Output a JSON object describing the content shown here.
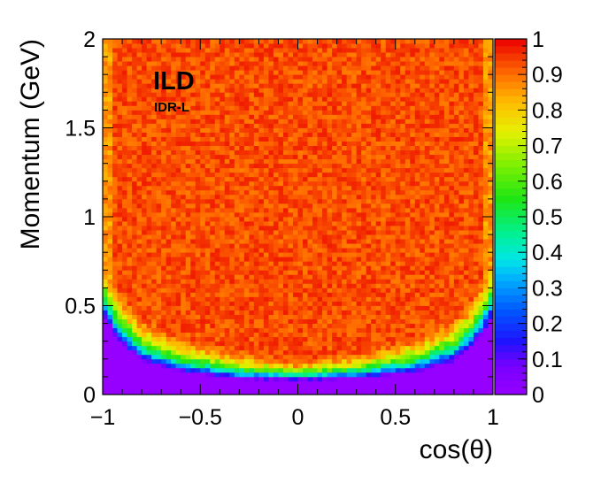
{
  "chart_data": {
    "type": "heatmap",
    "title": "",
    "xlabel": "cos(θ)",
    "ylabel": "Momentum (GeV)",
    "xlim": [
      -1,
      1
    ],
    "ylim": [
      0,
      2
    ],
    "x_ticks": [
      {
        "value": -1,
        "label": "−1"
      },
      {
        "value": -0.5,
        "label": "−0.5"
      },
      {
        "value": 0,
        "label": "0"
      },
      {
        "value": 0.5,
        "label": "0.5"
      },
      {
        "value": 1,
        "label": "1"
      }
    ],
    "y_ticks": [
      {
        "value": 0,
        "label": "0"
      },
      {
        "value": 0.5,
        "label": "0.5"
      },
      {
        "value": 1,
        "label": "1"
      },
      {
        "value": 1.5,
        "label": "1.5"
      },
      {
        "value": 2,
        "label": "2"
      }
    ],
    "z_range": [
      0,
      1
    ],
    "z_ticks": [
      {
        "value": 0,
        "label": "0"
      },
      {
        "value": 0.1,
        "label": "0.1"
      },
      {
        "value": 0.2,
        "label": "0.2"
      },
      {
        "value": 0.3,
        "label": "0.3"
      },
      {
        "value": 0.4,
        "label": "0.4"
      },
      {
        "value": 0.5,
        "label": "0.5"
      },
      {
        "value": 0.6,
        "label": "0.6"
      },
      {
        "value": 0.7,
        "label": "0.7"
      },
      {
        "value": 0.8,
        "label": "0.8"
      },
      {
        "value": 0.9,
        "label": "0.9"
      },
      {
        "value": 1,
        "label": "1"
      }
    ],
    "bins": {
      "x": 80,
      "y": 80
    },
    "colormap": "ROOT rainbow (violet to red)",
    "annotations": [
      {
        "text": "ILD",
        "style": "bold"
      },
      {
        "text": "IDR-L",
        "style": "bold"
      }
    ],
    "grid": false,
    "legend": "colorbar-right",
    "efficiency_profile": {
      "description": "Efficiency ~0 below threshold momentum, rises through 0.5-0.8 in a band, plateaus ~0.93 above",
      "threshold_momentum_vs_cos": [
        {
          "cos": -1.0,
          "p": 0.62
        },
        {
          "cos": -0.95,
          "p": 0.48
        },
        {
          "cos": -0.9,
          "p": 0.38
        },
        {
          "cos": -0.8,
          "p": 0.26
        },
        {
          "cos": -0.6,
          "p": 0.17
        },
        {
          "cos": -0.3,
          "p": 0.12
        },
        {
          "cos": 0.0,
          "p": 0.11
        },
        {
          "cos": 0.3,
          "p": 0.12
        },
        {
          "cos": 0.6,
          "p": 0.17
        },
        {
          "cos": 0.8,
          "p": 0.26
        },
        {
          "cos": 0.9,
          "p": 0.38
        },
        {
          "cos": 0.95,
          "p": 0.48
        },
        {
          "cos": 1.0,
          "p": 0.62
        }
      ],
      "plateau_efficiency": 0.93
    }
  }
}
